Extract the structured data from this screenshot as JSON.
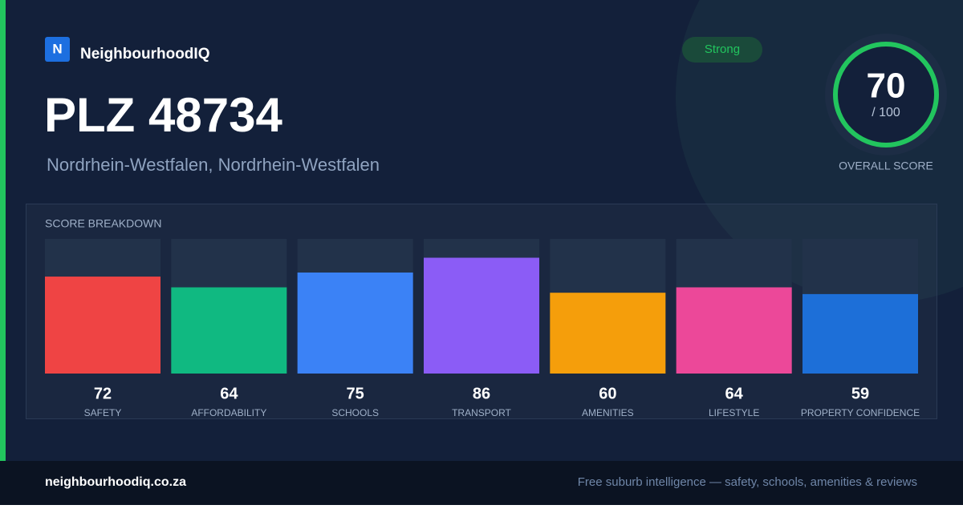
{
  "brand": "NeighbourhoodIQ",
  "logo_letter": "N",
  "badge": "Strong",
  "overall": {
    "score": 70,
    "out_of": "/ 100",
    "label": "OVERALL SCORE"
  },
  "chart_data": {
    "type": "bar",
    "title": "PLZ 48734",
    "subtitle": "Nordrhein-Westfalen, Nordrhein-Westfalen",
    "section_label": "SCORE BREAKDOWN",
    "categories": [
      "SAFETY",
      "AFFORDABILITY",
      "SCHOOLS",
      "TRANSPORT",
      "AMENITIES",
      "LIFESTYLE",
      "PROPERTY CONFIDENCE"
    ],
    "values": [
      72,
      64,
      75,
      86,
      60,
      64,
      59
    ],
    "colors": [
      "#ef4444",
      "#10b981",
      "#3b82f6",
      "#8b5cf6",
      "#f59e0b",
      "#ec4899",
      "#1d6fd8"
    ],
    "ylim": [
      0,
      100
    ]
  },
  "footer": {
    "site": "neighbourhoodiq.co.za",
    "tagline": "Free suburb intelligence — safety, schools, amenities & reviews"
  }
}
